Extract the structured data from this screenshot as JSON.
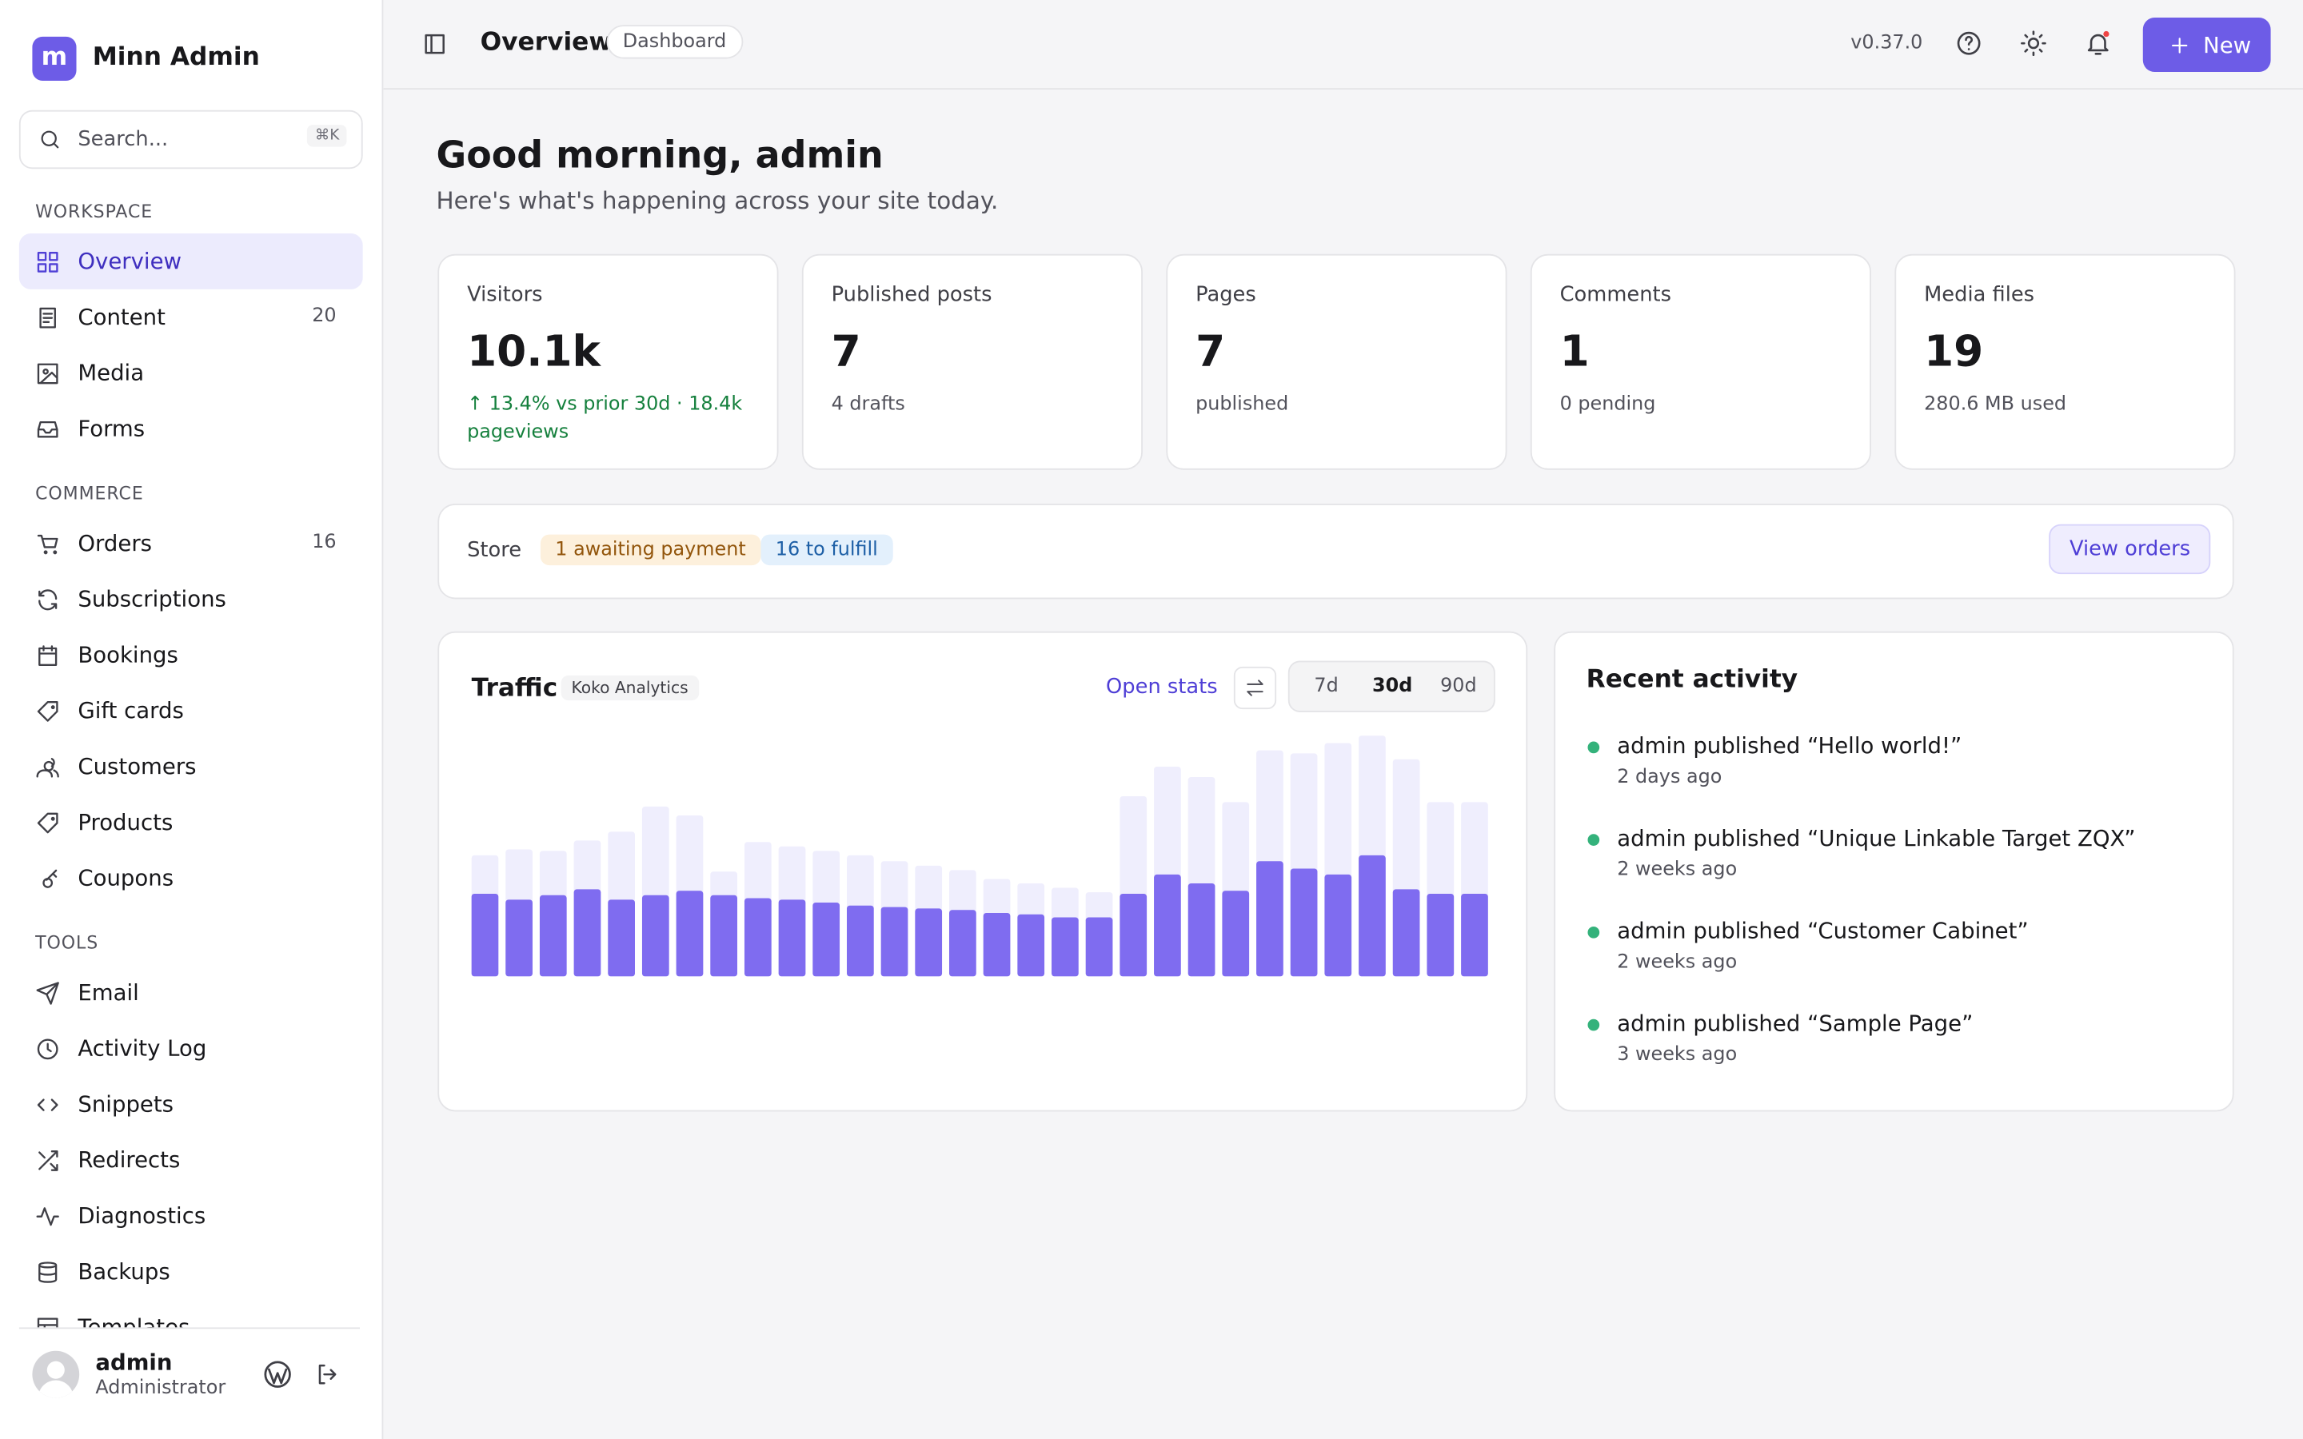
{
  "sidebar": {
    "brand_initial": "m",
    "brand": "Minn Admin",
    "search_placeholder": "Search...",
    "search_shortcut": "⌘K",
    "sections": [
      {
        "title": "WORKSPACE",
        "items": [
          {
            "label": "Overview",
            "active": true
          },
          {
            "label": "Content",
            "count": 20
          },
          {
            "label": "Media"
          },
          {
            "label": "Forms"
          }
        ]
      },
      {
        "title": "COMMERCE",
        "items": [
          {
            "label": "Orders",
            "count": 16
          },
          {
            "label": "Subscriptions"
          },
          {
            "label": "Bookings"
          },
          {
            "label": "Gift cards"
          },
          {
            "label": "Customers"
          },
          {
            "label": "Products"
          },
          {
            "label": "Coupons"
          }
        ]
      },
      {
        "title": "TOOLS",
        "items": [
          {
            "label": "Email"
          },
          {
            "label": "Activity Log"
          },
          {
            "label": "Snippets"
          },
          {
            "label": "Redirects"
          },
          {
            "label": "Diagnostics"
          },
          {
            "label": "Backups"
          },
          {
            "label": "Templates"
          }
        ]
      }
    ],
    "user": {
      "name": "admin",
      "role": "Administrator"
    }
  },
  "topbar": {
    "title": "Overview",
    "badge": "Dashboard",
    "version": "v0.37.0",
    "new_button": "New"
  },
  "greeting": {
    "title": "Good morning, admin",
    "subtitle": "Here's what's happening across your site today."
  },
  "stats": [
    {
      "label": "Visitors",
      "value": "10.1k",
      "note": "↑ 13.4% vs prior 30d · 18.4k pageviews"
    },
    {
      "label": "Published posts",
      "value": "7",
      "note": "4 drafts"
    },
    {
      "label": "Pages",
      "value": "7",
      "note": "published"
    },
    {
      "label": "Comments",
      "value": "1",
      "note": "0 pending"
    },
    {
      "label": "Media files",
      "value": "19",
      "note": "280.6 MB used"
    }
  ],
  "store": {
    "label": "Store",
    "awaiting": "1 awaiting payment",
    "fulfill": "16 to fulfill",
    "button": "View orders"
  },
  "traffic": {
    "title": "Traffic",
    "source": "Koko Analytics",
    "open": "Open stats",
    "ranges": [
      "7d",
      "30d",
      "90d"
    ],
    "active_range": 1
  },
  "chart_data": {
    "type": "bar",
    "series": [
      {
        "color": "#efeefd",
        "values": [
          492,
          516,
          510,
          552,
          588,
          690,
          654,
          426,
          546,
          528,
          510,
          492,
          468,
          450,
          432,
          396,
          378,
          360,
          342,
          732,
          852,
          810,
          708,
          918,
          906,
          948,
          978,
          882,
          708,
          708
        ]
      },
      {
        "color": "#7f6cf0",
        "values": [
          336,
          312,
          330,
          354,
          312,
          330,
          348,
          330,
          318,
          312,
          300,
          288,
          282,
          276,
          270,
          258,
          252,
          240,
          240,
          336,
          414,
          378,
          348,
          468,
          438,
          414,
          492,
          354,
          336,
          336
        ]
      }
    ]
  },
  "activity": {
    "title": "Recent activity",
    "items": [
      {
        "text": "admin published “Hello world!”",
        "time": "2 days ago"
      },
      {
        "text": "admin published “Unique Linkable Target ZQX”",
        "time": "2 weeks ago"
      },
      {
        "text": "admin published “Customer Cabinet”",
        "time": "2 weeks ago"
      },
      {
        "text": "admin published “Sample Page”",
        "time": "3 weeks ago"
      }
    ]
  }
}
